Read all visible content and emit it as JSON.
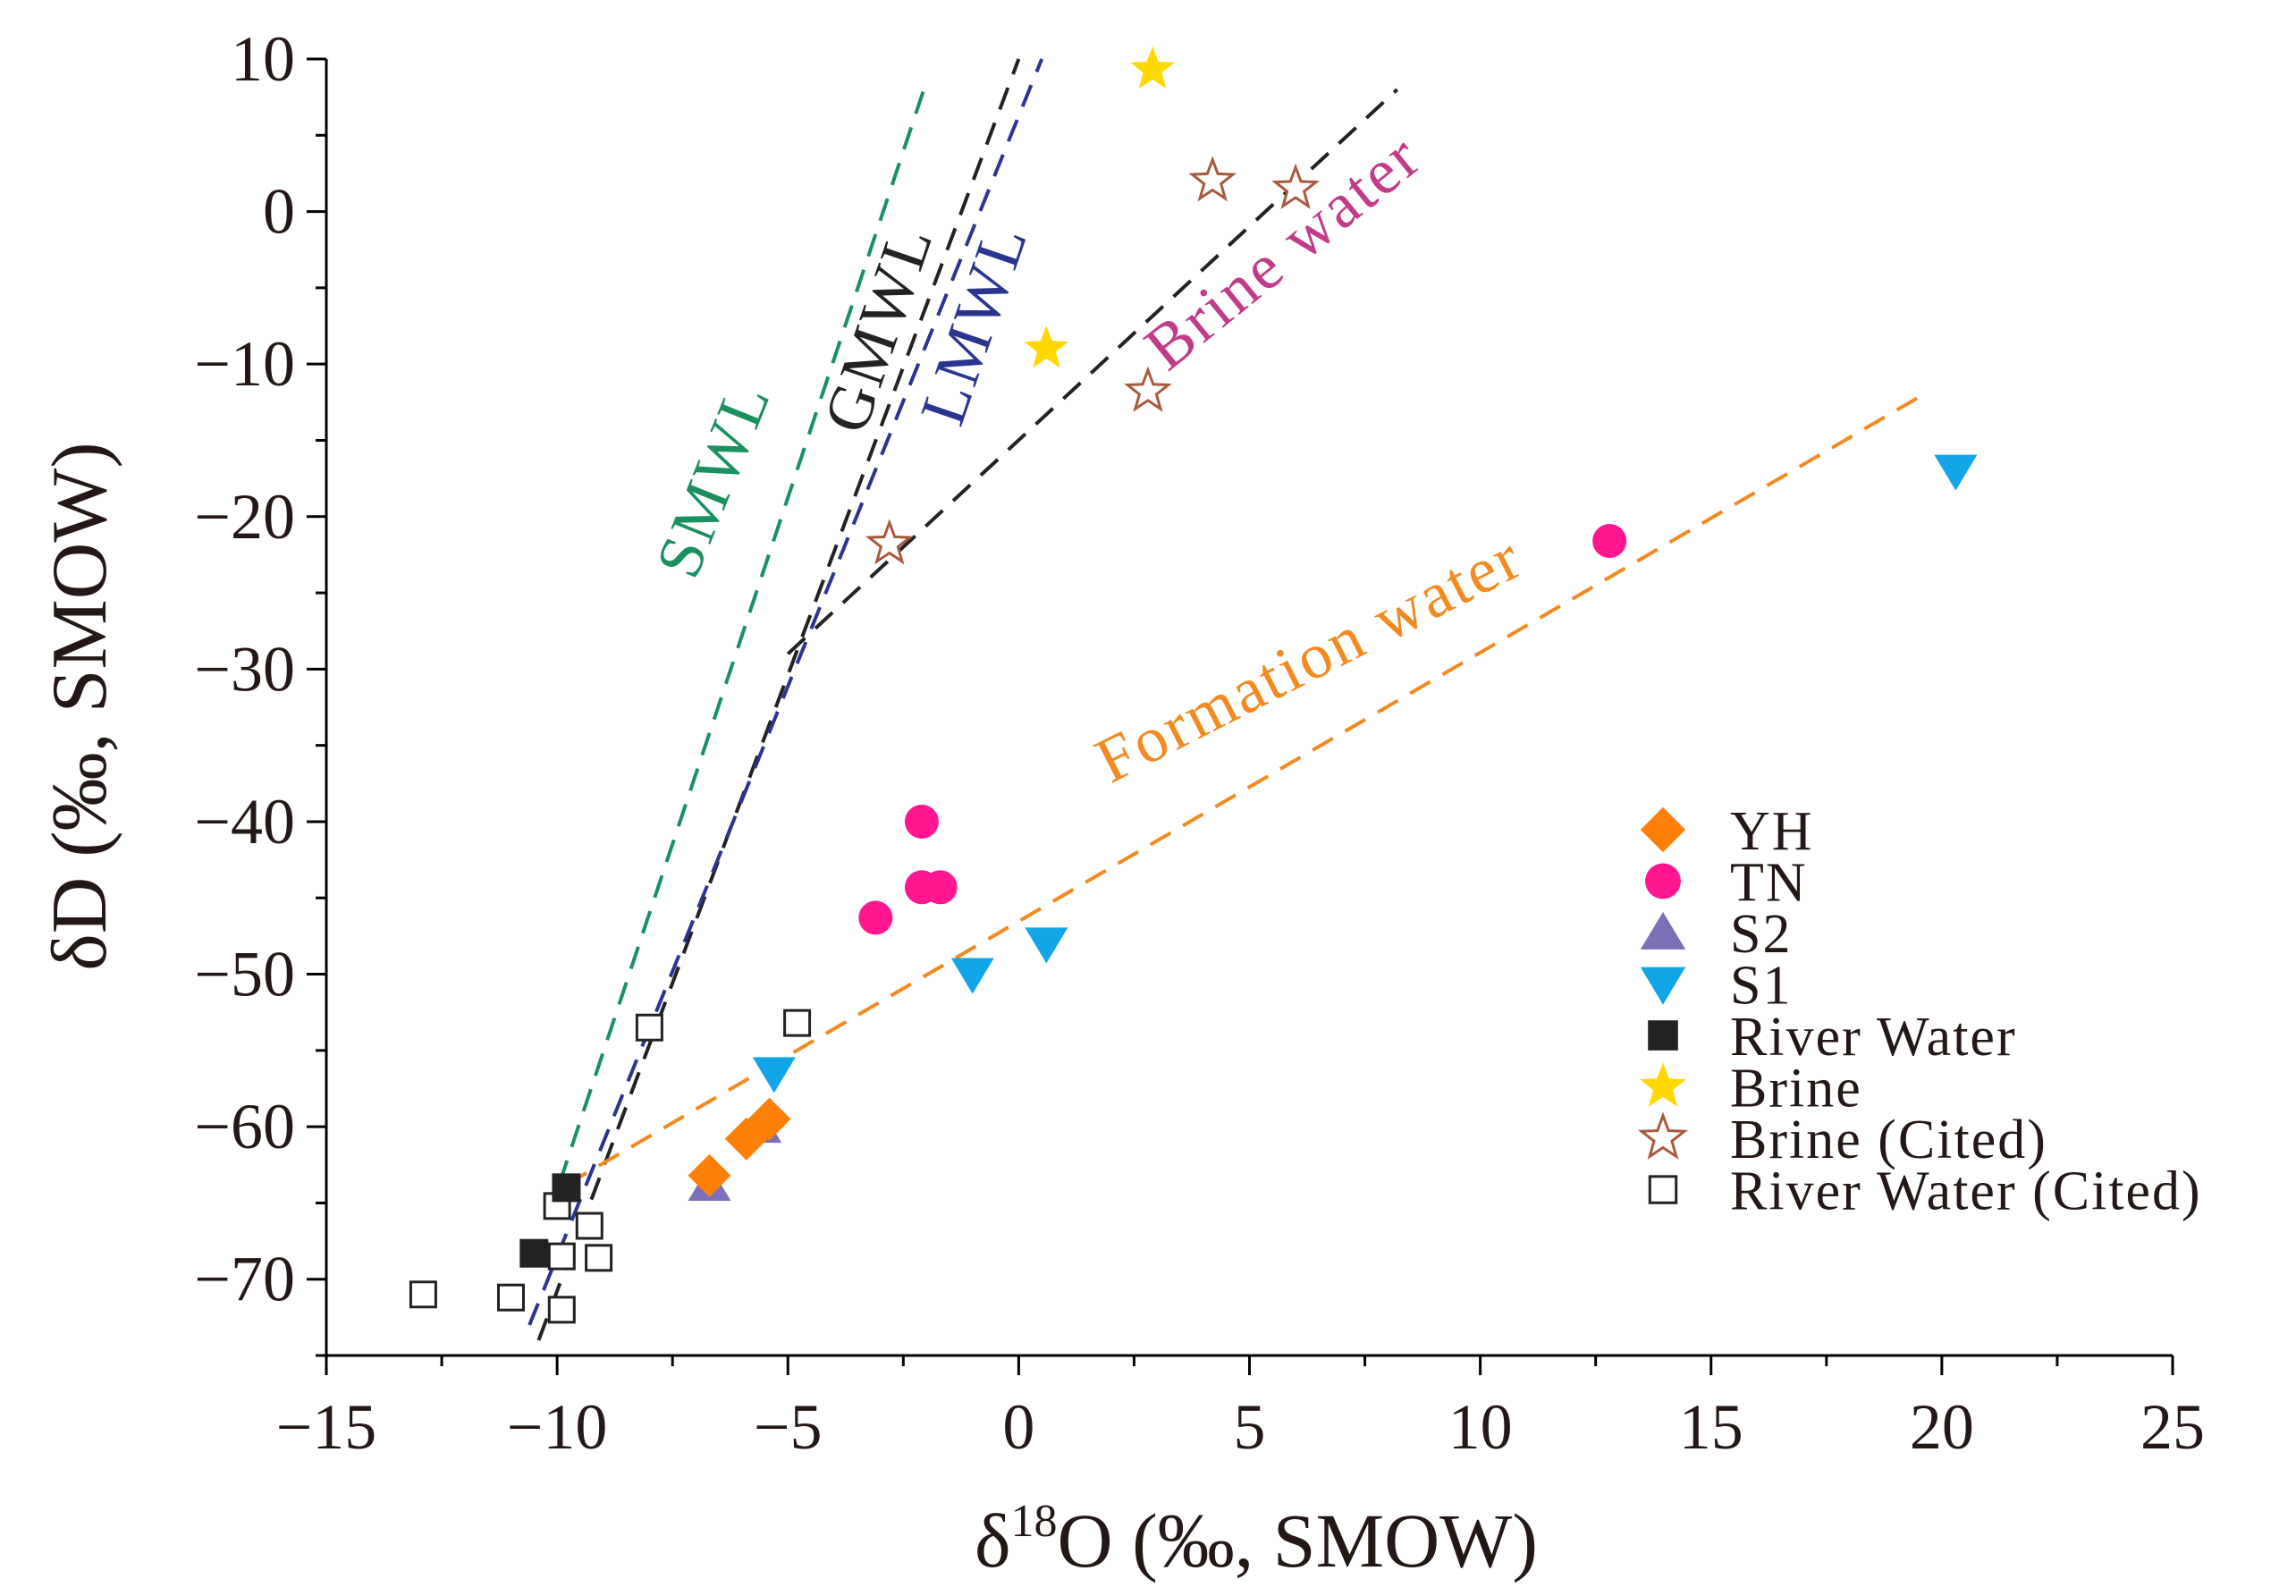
{
  "chart_data": {
    "type": "scatter",
    "xlabel_prefix": "δ",
    "xlabel_sup": "18",
    "xlabel_rest": "O (‰, SMOW)",
    "ylabel": "δD (‰, SMOW)",
    "xlim": [
      -15,
      25
    ],
    "ylim": [
      -75,
      10
    ],
    "xticks": [
      -15,
      -10,
      -5,
      0,
      5,
      10,
      15,
      20,
      25
    ],
    "yticks": [
      10,
      0,
      -10,
      -20,
      -30,
      -40,
      -50,
      -60,
      -70
    ],
    "xtick_labels": [
      "−15",
      "−10",
      "−5",
      "0",
      "5",
      "10",
      "15",
      "20",
      "25"
    ],
    "ytick_labels": [
      "10",
      "0",
      "−10",
      "−20",
      "−30",
      "−40",
      "−50",
      "−60",
      "−70"
    ],
    "lines": [
      {
        "name": "SMWL",
        "label": "SMWL",
        "color": "#1a9060",
        "points": [
          [
            -10.2,
            -66
          ],
          [
            -2.0,
            8.5
          ]
        ]
      },
      {
        "name": "GMWL",
        "label": "GMWL",
        "color": "#222222",
        "points": [
          [
            -10.4,
            -74
          ],
          [
            0,
            10
          ]
        ]
      },
      {
        "name": "LMWL",
        "label": "LMWL",
        "color": "#2a3590",
        "points": [
          [
            -10.6,
            -73
          ],
          [
            0.5,
            10
          ]
        ]
      },
      {
        "name": "Brine water",
        "label": "Brine water",
        "color": "#222222",
        "points": [
          [
            -5.0,
            -29
          ],
          [
            8.2,
            8
          ]
        ]
      },
      {
        "name": "Formation water",
        "label": "Formation water",
        "color": "#f28a1f",
        "points": [
          [
            -9.8,
            -63.8
          ],
          [
            19.6,
            -12
          ]
        ]
      }
    ],
    "series": [
      {
        "name": "YH",
        "marker": "diamond",
        "color": "#ff8008",
        "points": [
          [
            -6.7,
            -63.2
          ],
          [
            -5.9,
            -60.8
          ],
          [
            -5.4,
            -59.5
          ]
        ]
      },
      {
        "name": "TN",
        "marker": "circle",
        "color": "#ff1690",
        "points": [
          [
            -2.1,
            -40
          ],
          [
            -2.1,
            -44.3
          ],
          [
            -1.7,
            -44.3
          ],
          [
            -3.1,
            -46.3
          ],
          [
            12.8,
            -21.6
          ]
        ]
      },
      {
        "name": "S2",
        "marker": "triangle-up",
        "color": "#7d6fb8",
        "points": [
          [
            -6.7,
            -63.8
          ],
          [
            -5.6,
            -60
          ]
        ]
      },
      {
        "name": "S1",
        "marker": "triangle-down",
        "color": "#12a5e8",
        "points": [
          [
            -5.3,
            -56.5
          ],
          [
            -1.0,
            -50
          ],
          [
            0.6,
            -48
          ],
          [
            20.3,
            -17
          ]
        ]
      },
      {
        "name": "River Water",
        "marker": "square",
        "color": "#222222",
        "points": [
          [
            -9.8,
            -64
          ],
          [
            -10.5,
            -68.3
          ]
        ]
      },
      {
        "name": "Brine",
        "marker": "star",
        "color": "#ffd800",
        "points": [
          [
            2.9,
            9.3
          ],
          [
            0.6,
            -9
          ]
        ]
      },
      {
        "name": "Brine (Cited)",
        "marker": "star-open",
        "color": "#a85a3c",
        "points": [
          [
            4.2,
            2
          ],
          [
            6.0,
            1.5
          ],
          [
            2.8,
            -11.8
          ],
          [
            -2.8,
            -21.8
          ]
        ]
      },
      {
        "name": "River Water (Cited)",
        "marker": "square-open",
        "color": "#222222",
        "points": [
          [
            -8.0,
            -53.5
          ],
          [
            -4.8,
            -53.2
          ],
          [
            -10.0,
            -65.2
          ],
          [
            -9.3,
            -66.5
          ],
          [
            -9.1,
            -68.6
          ],
          [
            -9.9,
            -68.5
          ],
          [
            -12.9,
            -71
          ],
          [
            -11.0,
            -71.2
          ],
          [
            -9.9,
            -72
          ]
        ]
      }
    ]
  }
}
